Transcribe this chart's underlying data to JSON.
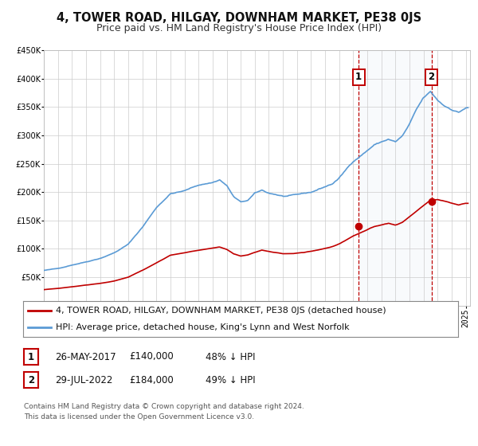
{
  "title": "4, TOWER ROAD, HILGAY, DOWNHAM MARKET, PE38 0JS",
  "subtitle": "Price paid vs. HM Land Registry's House Price Index (HPI)",
  "ylim": [
    0,
    450000
  ],
  "yticks": [
    0,
    50000,
    100000,
    150000,
    200000,
    250000,
    300000,
    350000,
    400000,
    450000
  ],
  "xlim_start": 1995.0,
  "xlim_end": 2025.3,
  "hpi_color": "#5b9bd5",
  "price_color": "#c00000",
  "marker_color": "#c00000",
  "sale1_date": 2017.39,
  "sale1_value": 140000,
  "sale2_date": 2022.57,
  "sale2_value": 184000,
  "vline_color": "#c00000",
  "shade_color": "#dce6f1",
  "legend_label1": "4, TOWER ROAD, HILGAY, DOWNHAM MARKET, PE38 0JS (detached house)",
  "legend_label2": "HPI: Average price, detached house, King's Lynn and West Norfolk",
  "table_row1": [
    "1",
    "26-MAY-2017",
    "£140,000",
    "48% ↓ HPI"
  ],
  "table_row2": [
    "2",
    "29-JUL-2022",
    "£184,000",
    "49% ↓ HPI"
  ],
  "footer1": "Contains HM Land Registry data © Crown copyright and database right 2024.",
  "footer2": "This data is licensed under the Open Government Licence v3.0.",
  "background_color": "#ffffff",
  "grid_color": "#cccccc",
  "title_fontsize": 10.5,
  "subtitle_fontsize": 9,
  "tick_fontsize": 7,
  "legend_fontsize": 8,
  "table_fontsize": 8.5,
  "footer_fontsize": 6.5
}
